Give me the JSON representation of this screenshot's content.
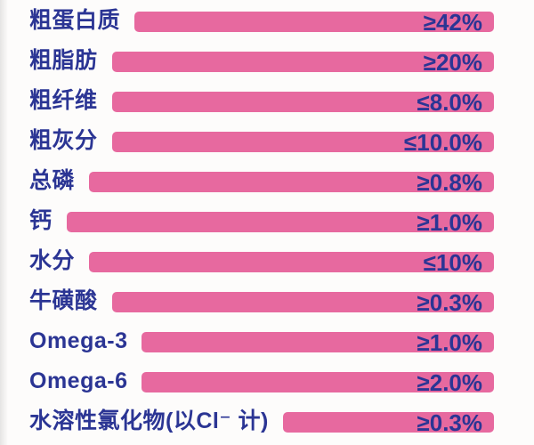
{
  "colors": {
    "bar_pink": "#e7699f",
    "text_navy": "#2b3594",
    "background": "#fdfcfb"
  },
  "chart_data": {
    "type": "table",
    "description": "Pet food guaranteed nutrition analysis shown as full-width pink bars; bar length fills space after each label (not value-encoded), values printed inside right end of each bar",
    "columns": [
      "nutrient",
      "guaranteed_value"
    ],
    "layout_hints": {
      "bar_alignment": "right-flush",
      "value_position": "inside-right",
      "grid": "off",
      "legend": "none"
    },
    "rows": [
      {
        "label": "粗蛋白质",
        "value": "≥42%"
      },
      {
        "label": "粗脂肪",
        "value": "≥20%"
      },
      {
        "label": "粗纤维",
        "value": "≤8.0%"
      },
      {
        "label": "粗灰分",
        "value": "≤10.0%"
      },
      {
        "label": "总磷",
        "value": "≥0.8%"
      },
      {
        "label": "钙",
        "value": "≥1.0%"
      },
      {
        "label": "水分",
        "value": "≤10%"
      },
      {
        "label": "牛磺酸",
        "value": "≥0.3%"
      },
      {
        "label": "Omega-3",
        "value": "≥1.0%"
      },
      {
        "label": "Omega-6",
        "value": "≥2.0%"
      },
      {
        "label": "水溶性氯化物(以Cl⁻ 计)",
        "value": "≥0.3%"
      }
    ]
  }
}
